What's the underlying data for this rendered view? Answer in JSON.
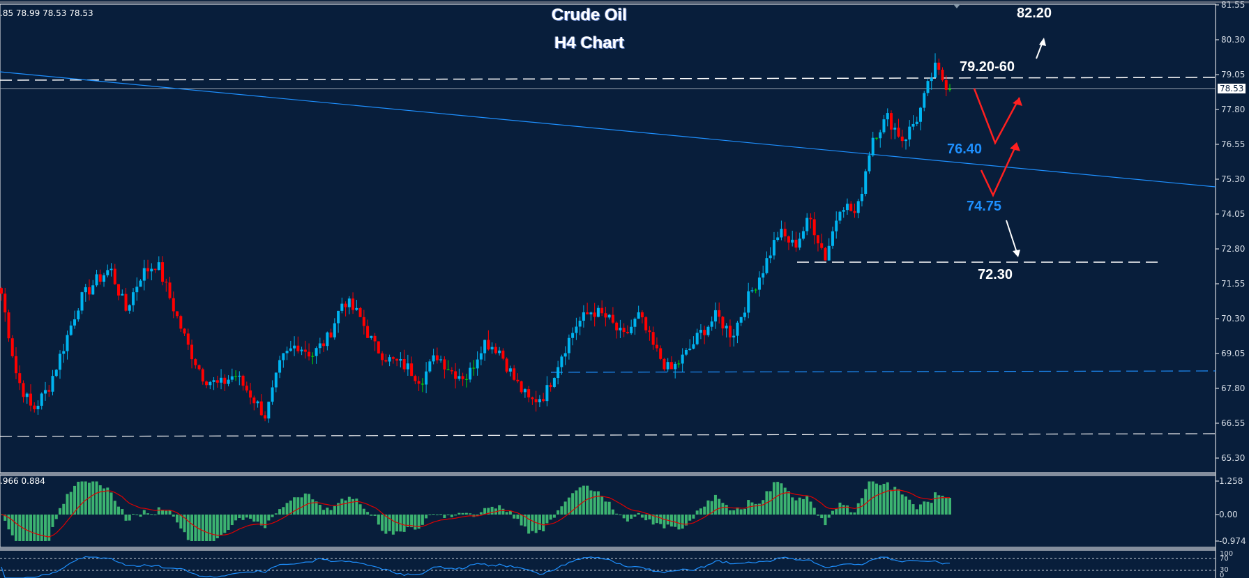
{
  "header": {
    "ohlc_readout": ".85 78.99 78.53 78.53",
    "title_line1": "Crude Oil",
    "title_line2": "H4 Chart"
  },
  "price_axis": {
    "ticks": [
      "81.55",
      "80.30",
      "79.05",
      "77.80",
      "76.55",
      "75.30",
      "74.05",
      "72.80",
      "71.55",
      "70.30",
      "69.05",
      "67.80",
      "66.55",
      "65.30"
    ],
    "current_price": "78.53"
  },
  "macd_panel": {
    "readout": ".966 0.884",
    "ticks": [
      "1.258",
      "0.00",
      "-0.974"
    ]
  },
  "rsi_panel": {
    "ticks": [
      "100",
      "70",
      "30",
      "0"
    ]
  },
  "annotations": {
    "target_up": "82.20",
    "resistance_zone": "79.20-60",
    "support_1": "76.40",
    "support_2": "74.75",
    "target_down": "72.30"
  },
  "colors": {
    "background": "#081e3b",
    "bull_candle": "#00b4f0",
    "bear_candle": "#ff0000",
    "doji": "#00e000",
    "macd_hist": "#3cb371",
    "macd_signal": "#e00000",
    "rsi_line": "#1e90ff",
    "trendline": "#1e90ff",
    "level_line": "#ffffff",
    "support_label": "#1e90ff",
    "arrow_red": "#ff2020"
  },
  "chart_data": {
    "type": "candlestick",
    "title": "Crude Oil H4 Chart",
    "instrument": "Crude Oil",
    "timeframe": "H4",
    "ylim": [
      64.7,
      81.9
    ],
    "y_ticks": [
      81.55,
      80.3,
      79.05,
      77.8,
      76.55,
      75.3,
      74.05,
      72.8,
      71.55,
      70.3,
      69.05,
      67.8,
      66.55,
      65.3
    ],
    "last_ohlc": {
      "open_partial": ".85",
      "high": 78.99,
      "low": 78.53,
      "close": 78.53
    },
    "current_price": 78.53,
    "approx_close_path": [
      71.2,
      68.2,
      67.0,
      67.8,
      69.3,
      70.9,
      71.6,
      72.1,
      70.6,
      71.9,
      72.3,
      70.8,
      69.3,
      68.2,
      67.9,
      68.3,
      67.6,
      66.8,
      68.8,
      69.4,
      69.0,
      69.6,
      71.0,
      70.4,
      69.3,
      68.8,
      68.6,
      68.1,
      69.0,
      68.4,
      68.2,
      69.5,
      69.2,
      68.1,
      67.3,
      67.6,
      69.0,
      70.1,
      70.6,
      70.3,
      69.6,
      70.4,
      69.2,
      68.4,
      69.0,
      69.8,
      70.4,
      69.7,
      71.0,
      72.1,
      73.4,
      72.9,
      73.9,
      72.5,
      74.5,
      74.0,
      76.8,
      77.5,
      76.7,
      77.6,
      79.3,
      78.53
    ],
    "levels": [
      {
        "name": "resistance_dashed",
        "value": 79.05,
        "style": "white-dashed"
      },
      {
        "name": "support_dashed",
        "value": 72.3,
        "style": "white-dashed"
      },
      {
        "name": "blue_dashed",
        "value": 68.4,
        "style": "blue-dashed"
      },
      {
        "name": "lower_dashed",
        "value": 66.35,
        "style": "white-dashed"
      },
      {
        "name": "trendline_start",
        "value": 79.2
      },
      {
        "name": "trendline_end",
        "value": 75.0
      }
    ],
    "annotations": [
      "82.20",
      "79.20-60",
      "76.40",
      "74.75",
      "72.30"
    ],
    "subcharts": [
      {
        "name": "MACD",
        "type": "histogram+line",
        "readout": [
          0.966,
          0.884
        ],
        "ylim": [
          -0.974,
          1.258
        ]
      },
      {
        "name": "RSI",
        "type": "line",
        "levels": [
          70,
          30
        ],
        "ylim": [
          0,
          100
        ]
      }
    ]
  }
}
